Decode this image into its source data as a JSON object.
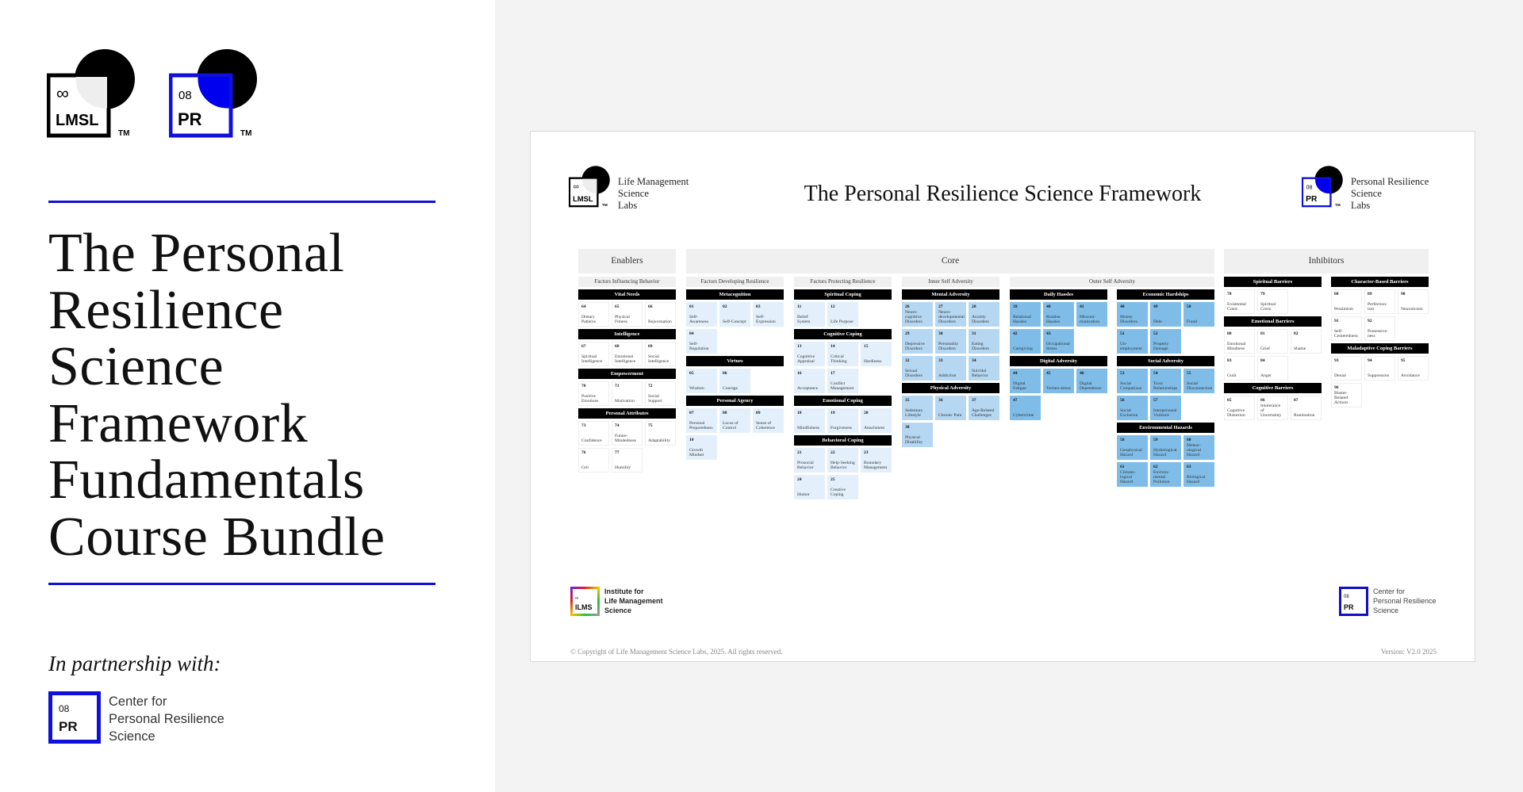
{
  "left_panel": {
    "logos": [
      {
        "symbol": "∞",
        "text": "LMSL",
        "tm": "TM",
        "lens_color": "#eeeeee",
        "border_color": "#000000"
      },
      {
        "symbol": "08",
        "text": "PR",
        "tm": "TM",
        "lens_color": "#0000ee",
        "border_color": "#1010d8"
      }
    ],
    "title_lines": [
      "The Personal",
      "Resilience",
      "Science",
      "Framework",
      "Fundamentals",
      "Course Bundle"
    ],
    "partnership_label": "In partnership with:",
    "partner": {
      "logo_number": "08",
      "logo_text": "PR",
      "name_lines": [
        "Center for",
        "Personal Resilience",
        "Science"
      ]
    },
    "accent_color": "#1010d8"
  },
  "framework": {
    "title": "The Personal Resilience Science Framework",
    "header_left": {
      "logo_symbol": "∞",
      "logo_text": "LMSL",
      "tm": "TM",
      "name_lines": [
        "Life Management",
        "Science",
        "Labs"
      ]
    },
    "header_right": {
      "logo_symbol": "08",
      "logo_text": "PR",
      "tm": "TM",
      "name_lines": [
        "Personal Resilience",
        "Science",
        "Labs"
      ]
    },
    "sections": [
      {
        "title": "Enablers",
        "key": "enablers",
        "subsections": [
          {
            "title": "Factors Influencing Behavior",
            "cell_color": "#ffffff",
            "columns": [
              [
                {
                  "title": "Vital Needs",
                  "cells": [
                    {
                      "n": "64",
                      "label": "Dietary Patterns"
                    },
                    {
                      "n": "65",
                      "label": "Physical Fitness"
                    },
                    {
                      "n": "66",
                      "label": "Rejuvenation"
                    }
                  ]
                },
                {
                  "title": "Intelligence",
                  "cells": [
                    {
                      "n": "67",
                      "label": "Spiritual Intelligence"
                    },
                    {
                      "n": "68",
                      "label": "Emotional Intelligence"
                    },
                    {
                      "n": "69",
                      "label": "Social Intelligence"
                    }
                  ]
                },
                {
                  "title": "Empowerment",
                  "cells": [
                    {
                      "n": "70",
                      "label": "Positive Emotions"
                    },
                    {
                      "n": "71",
                      "label": "Motivation"
                    },
                    {
                      "n": "72",
                      "label": "Social Support"
                    }
                  ]
                },
                {
                  "title": "Personal Attributes",
                  "cells": [
                    {
                      "n": "73",
                      "label": "Confidence"
                    },
                    {
                      "n": "74",
                      "label": "Future-Mindedness"
                    },
                    {
                      "n": "75",
                      "label": "Adaptability"
                    },
                    {
                      "n": "76",
                      "label": "Grit"
                    },
                    {
                      "n": "77",
                      "label": "Humility"
                    }
                  ]
                }
              ]
            ]
          }
        ]
      },
      {
        "title": "Core",
        "key": "core",
        "subsections": [
          {
            "title": "Factors Developing Resilience",
            "cell_color": "#e3f0fb",
            "columns": [
              [
                {
                  "title": "Metacognition",
                  "cells": [
                    {
                      "n": "01",
                      "label": "Self-Awareness"
                    },
                    {
                      "n": "02",
                      "label": "Self-Concept"
                    },
                    {
                      "n": "03",
                      "label": "Self-Expression"
                    },
                    {
                      "n": "04",
                      "label": "Self-Regulation"
                    }
                  ]
                },
                {
                  "title": "Virtues",
                  "cells": [
                    {
                      "n": "05",
                      "label": "Wisdom"
                    },
                    {
                      "n": "06",
                      "label": "Courage"
                    }
                  ]
                },
                {
                  "title": "Personal Agency",
                  "cells": [
                    {
                      "n": "07",
                      "label": "Personal Preparedness"
                    },
                    {
                      "n": "08",
                      "label": "Locus of Control"
                    },
                    {
                      "n": "09",
                      "label": "Sense of Coherence"
                    },
                    {
                      "n": "10",
                      "label": "Growth Mindset"
                    }
                  ]
                }
              ]
            ]
          },
          {
            "title": "Factors Protecting Resilience",
            "cell_color": "#e3f0fb",
            "columns": [
              [
                {
                  "title": "Spiritual Coping",
                  "cells": [
                    {
                      "n": "11",
                      "label": "Belief System"
                    },
                    {
                      "n": "12",
                      "label": "Life Purpose"
                    }
                  ]
                },
                {
                  "title": "Cognitive Coping",
                  "cells": [
                    {
                      "n": "13",
                      "label": "Cognitive Appraisal"
                    },
                    {
                      "n": "14",
                      "label": "Critical Thinking"
                    },
                    {
                      "n": "15",
                      "label": "Hardiness"
                    },
                    {
                      "n": "16",
                      "label": "Acceptance"
                    },
                    {
                      "n": "17",
                      "label": "Conflict Management"
                    }
                  ]
                },
                {
                  "title": "Emotional Coping",
                  "cells": [
                    {
                      "n": "18",
                      "label": "Mindfulness"
                    },
                    {
                      "n": "19",
                      "label": "Forgiveness"
                    },
                    {
                      "n": "20",
                      "label": "Attachment"
                    }
                  ]
                },
                {
                  "title": "Behavioral Coping",
                  "cells": [
                    {
                      "n": "21",
                      "label": "Prosocial Behavior"
                    },
                    {
                      "n": "22",
                      "label": "Help-Seeking Behavior"
                    },
                    {
                      "n": "23",
                      "label": "Boundary Management"
                    },
                    {
                      "n": "24",
                      "label": "Humor"
                    },
                    {
                      "n": "25",
                      "label": "Creative Coping"
                    }
                  ]
                }
              ]
            ]
          },
          {
            "title": "Inner Self Adversity",
            "cell_color": "#b5d7f2",
            "columns": [
              [
                {
                  "title": "Mental Adversity",
                  "cells": [
                    {
                      "n": "26",
                      "label": "Neuro-cognitive Disorders"
                    },
                    {
                      "n": "27",
                      "label": "Neuro-developmental Disorders"
                    },
                    {
                      "n": "28",
                      "label": "Anxiety Disorders"
                    },
                    {
                      "n": "29",
                      "label": "Depressive Disorders"
                    },
                    {
                      "n": "30",
                      "label": "Personality Disorders"
                    },
                    {
                      "n": "31",
                      "label": "Eating Disorders"
                    },
                    {
                      "n": "32",
                      "label": "Sexual Disorders"
                    },
                    {
                      "n": "33",
                      "label": "Addiction"
                    },
                    {
                      "n": "34",
                      "label": "Suicidal Behavior"
                    }
                  ]
                },
                {
                  "title": "Physical Adversity",
                  "cells": [
                    {
                      "n": "35",
                      "label": "Sedentary Lifestyle"
                    },
                    {
                      "n": "36",
                      "label": "Chronic Pain"
                    },
                    {
                      "n": "37",
                      "label": "Age-Related Challenges"
                    },
                    {
                      "n": "38",
                      "label": "Physical Disability"
                    }
                  ]
                }
              ]
            ]
          },
          {
            "title": "Outer Self Adversity",
            "cell_color": "#7fbde8",
            "columns": [
              [
                {
                  "title": "Daily Hassles",
                  "cells": [
                    {
                      "n": "39",
                      "label": "Relational Hassles"
                    },
                    {
                      "n": "40",
                      "label": "Routine Hassles"
                    },
                    {
                      "n": "41",
                      "label": "Miscom-munication"
                    },
                    {
                      "n": "42",
                      "label": "Caregiving"
                    },
                    {
                      "n": "43",
                      "label": "Occupational Stress"
                    }
                  ]
                },
                {
                  "title": "Digital Adversity",
                  "cells": [
                    {
                      "n": "44",
                      "label": "Digital Fatigue"
                    },
                    {
                      "n": "45",
                      "label": "Techno-stress"
                    },
                    {
                      "n": "46",
                      "label": "Digital Dependence"
                    },
                    {
                      "n": "47",
                      "label": "Cybercrime"
                    }
                  ]
                }
              ],
              [
                {
                  "title": "Economic Hardships",
                  "cells": [
                    {
                      "n": "48",
                      "label": "Money Disorders"
                    },
                    {
                      "n": "49",
                      "label": "Debt"
                    },
                    {
                      "n": "50",
                      "label": "Fraud"
                    },
                    {
                      "n": "51",
                      "label": "Un-employment"
                    },
                    {
                      "n": "52",
                      "label": "Property Damage"
                    }
                  ]
                },
                {
                  "title": "Social Adversity",
                  "cells": [
                    {
                      "n": "53",
                      "label": "Social Comparison"
                    },
                    {
                      "n": "54",
                      "label": "Toxic Relationships"
                    },
                    {
                      "n": "55",
                      "label": "Social Disconnection"
                    },
                    {
                      "n": "56",
                      "label": "Social Exclusion"
                    },
                    {
                      "n": "57",
                      "label": "Interpersonal Violence"
                    }
                  ]
                },
                {
                  "title": "Environmental Hazards",
                  "cells": [
                    {
                      "n": "58",
                      "label": "Geophysical Hazard"
                    },
                    {
                      "n": "59",
                      "label": "Hydrological Hazard"
                    },
                    {
                      "n": "60",
                      "label": "Meteor-ological Hazard"
                    },
                    {
                      "n": "61",
                      "label": "Climato-logical Hazard"
                    },
                    {
                      "n": "62",
                      "label": "Environ-mental Pollution"
                    },
                    {
                      "n": "63",
                      "label": "Biological Hazard"
                    }
                  ]
                }
              ]
            ]
          }
        ]
      },
      {
        "title": "Inhibitors",
        "key": "inhibitors",
        "subsections": [
          {
            "title": "",
            "cell_color": "#ffffff",
            "columns": [
              [
                {
                  "title": "Spiritual Barriers",
                  "cells": [
                    {
                      "n": "78",
                      "label": "Existential Crisis"
                    },
                    {
                      "n": "79",
                      "label": "Spiritual Crisis"
                    }
                  ]
                },
                {
                  "title": "Emotional Barriers",
                  "cells": [
                    {
                      "n": "80",
                      "label": "Emotional Blindness"
                    },
                    {
                      "n": "81",
                      "label": "Grief"
                    },
                    {
                      "n": "82",
                      "label": "Shame"
                    },
                    {
                      "n": "83",
                      "label": "Guilt"
                    },
                    {
                      "n": "84",
                      "label": "Anger"
                    }
                  ]
                },
                {
                  "title": "Cognitive Barriers",
                  "cells": [
                    {
                      "n": "85",
                      "label": "Cognitive Distortion"
                    },
                    {
                      "n": "86",
                      "label": "Intolerance of Uncertainty"
                    },
                    {
                      "n": "87",
                      "label": "Rumination"
                    }
                  ]
                }
              ],
              [
                {
                  "title": "Character-Based Barriers",
                  "cells": [
                    {
                      "n": "88",
                      "label": "Pessimism"
                    },
                    {
                      "n": "89",
                      "label": "Perfection-ism"
                    },
                    {
                      "n": "90",
                      "label": "Neuroticism"
                    },
                    {
                      "n": "91",
                      "label": "Self-Centeredness"
                    },
                    {
                      "n": "92",
                      "label": "Possessive-ness"
                    }
                  ]
                },
                {
                  "title": "Maladaptive Coping Barriers",
                  "cells": [
                    {
                      "n": "93",
                      "label": "Denial"
                    },
                    {
                      "n": "94",
                      "label": "Suppression"
                    },
                    {
                      "n": "95",
                      "label": "Avoidance"
                    },
                    {
                      "n": "96",
                      "label": "Blame-Related Actions"
                    }
                  ]
                }
              ]
            ]
          }
        ]
      }
    ],
    "footer_left": {
      "logo_symbol": "∞",
      "logo_text": "ILMS",
      "name_lines": [
        "Institute for",
        "Life Management",
        "Science"
      ]
    },
    "footer_right": {
      "logo_symbol": "08",
      "logo_text": "PR",
      "name_lines": [
        "Center for",
        "Personal Resilience",
        "Science"
      ]
    },
    "copyright": "© Copyright of Life Management Science Labs, 2025. All rights reserved.",
    "version": "Version: V2.0 2025"
  }
}
